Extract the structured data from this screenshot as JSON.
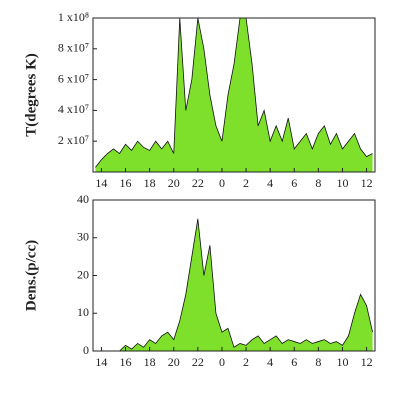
{
  "chart_data": [
    {
      "type": "area",
      "ylabel": "T(degrees K)",
      "color": "#7ee02a",
      "x": [
        13.5,
        14,
        14.5,
        15,
        15.5,
        16,
        16.5,
        17,
        17.5,
        18,
        18.5,
        19,
        19.5,
        20,
        20.5,
        21,
        21.5,
        22,
        22.5,
        23,
        23.5,
        24,
        24.5,
        25,
        25.5,
        26,
        26.5,
        27,
        27.5,
        28,
        28.5,
        29,
        29.5,
        30,
        30.5,
        31,
        31.5,
        32,
        32.5,
        33,
        33.5,
        34,
        34.5,
        35,
        35.5,
        36,
        36.5
      ],
      "values": [
        3000000,
        8000000,
        12000000,
        15000000,
        12000000,
        18000000,
        14000000,
        20000000,
        16000000,
        14000000,
        20000000,
        15000000,
        20000000,
        12000000,
        100000000,
        40000000,
        60000000,
        100000000,
        80000000,
        50000000,
        30000000,
        20000000,
        50000000,
        70000000,
        100000000,
        100000000,
        70000000,
        30000000,
        40000000,
        20000000,
        30000000,
        20000000,
        35000000,
        15000000,
        20000000,
        25000000,
        15000000,
        25000000,
        30000000,
        18000000,
        25000000,
        15000000,
        20000000,
        25000000,
        15000000,
        10000000,
        12000000
      ],
      "xlim": [
        13.3,
        36.7
      ],
      "ylim": [
        0,
        100000000
      ],
      "xticks": [
        14,
        16,
        18,
        20,
        22,
        {
          "value": 24,
          "label": "0"
        },
        {
          "value": 26,
          "label": "2"
        },
        {
          "value": 28,
          "label": "4"
        },
        {
          "value": 30,
          "label": "6"
        },
        {
          "value": 32,
          "label": "8"
        },
        {
          "value": 34,
          "label": "10"
        },
        {
          "value": 36,
          "label": "12"
        }
      ],
      "yticks": [
        {
          "value": 20000000,
          "label": "2 x10⁷"
        },
        {
          "value": 40000000,
          "label": "4 x10⁷"
        },
        {
          "value": 60000000,
          "label": "6 x10⁷"
        },
        {
          "value": 80000000,
          "label": "8 x10⁷"
        },
        {
          "value": 100000000,
          "label": "1 x10⁸"
        }
      ]
    },
    {
      "type": "area",
      "ylabel": "Dens.(p/cc)",
      "color": "#7ee02a",
      "x": [
        13.5,
        14,
        14.5,
        15,
        15.5,
        16,
        16.5,
        17,
        17.5,
        18,
        18.5,
        19,
        19.5,
        20,
        20.5,
        21,
        21.5,
        22,
        22.5,
        23,
        23.5,
        24,
        24.5,
        25,
        25.5,
        26,
        26.5,
        27,
        27.5,
        28,
        28.5,
        29,
        29.5,
        30,
        30.5,
        31,
        31.5,
        32,
        32.5,
        33,
        33.5,
        34,
        34.5,
        35,
        35.5,
        36,
        36.5
      ],
      "values": [
        0,
        0,
        0,
        0,
        0,
        1.5,
        0.5,
        2,
        1,
        3,
        2,
        4,
        5,
        3,
        8,
        15,
        25,
        35,
        20,
        28,
        10,
        5,
        6,
        1,
        2,
        1.5,
        3,
        4,
        2,
        3,
        4,
        2,
        3,
        2.5,
        2,
        3,
        2,
        2.5,
        3,
        2,
        2.5,
        1.5,
        4,
        10,
        15,
        12,
        5
      ],
      "xlim": [
        13.3,
        36.7
      ],
      "ylim": [
        0,
        40
      ],
      "xticks": [
        14,
        16,
        18,
        20,
        22,
        {
          "value": 24,
          "label": "0"
        },
        {
          "value": 26,
          "label": "2"
        },
        {
          "value": 28,
          "label": "4"
        },
        {
          "value": 30,
          "label": "6"
        },
        {
          "value": 32,
          "label": "8"
        },
        {
          "value": 34,
          "label": "10"
        },
        {
          "value": 36,
          "label": "12"
        }
      ],
      "yticks": [
        0,
        10,
        20,
        30,
        40
      ]
    }
  ]
}
